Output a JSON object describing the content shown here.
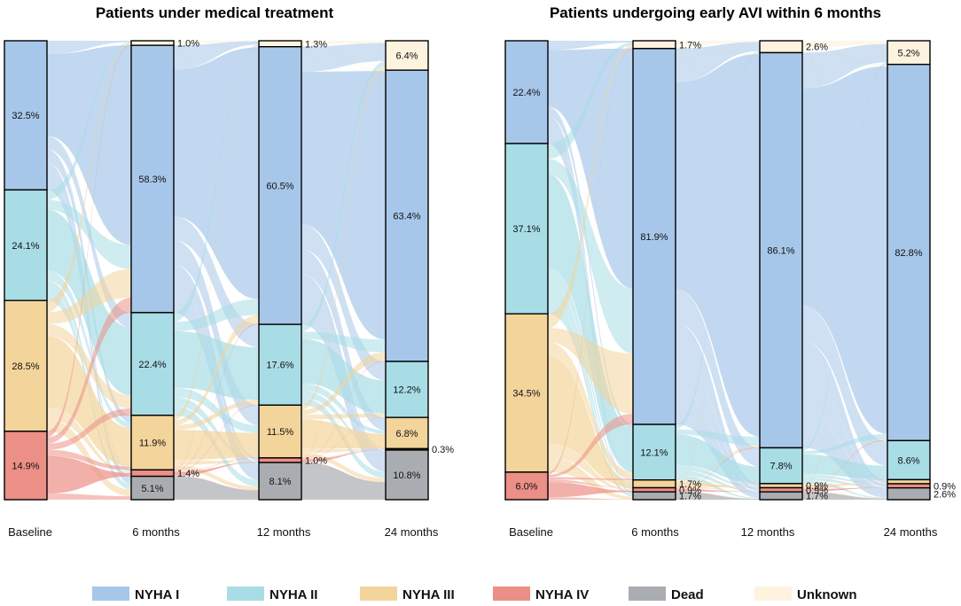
{
  "colors": {
    "NYHA I": "#a7c7ea",
    "NYHA II": "#a8dde6",
    "NYHA III": "#f3d49b",
    "NYHA IV": "#ec8f86",
    "Dead": "#a9adb1",
    "Unknown": "#fdf3de"
  },
  "legend": [
    "NYHA I",
    "NYHA II",
    "NYHA III",
    "NYHA IV",
    "Dead",
    "Unknown"
  ],
  "chart_data": [
    {
      "type": "sankey",
      "title": "Patients under medical treatment",
      "timepoints": [
        "Baseline",
        "6 months",
        "12 months",
        "24 months"
      ],
      "stack_order": [
        "Unknown",
        "NYHA I",
        "NYHA II",
        "NYHA III",
        "NYHA IV",
        "Dead"
      ],
      "columns": [
        {
          "NYHA I": 32.5,
          "NYHA II": 24.1,
          "NYHA III": 28.5,
          "NYHA IV": 14.9
        },
        {
          "Unknown": 1.0,
          "NYHA I": 58.3,
          "NYHA II": 22.4,
          "NYHA III": 11.9,
          "NYHA IV": 1.4,
          "Dead": 5.1
        },
        {
          "Unknown": 1.3,
          "NYHA I": 60.5,
          "NYHA II": 17.6,
          "NYHA III": 11.5,
          "NYHA IV": 1.0,
          "Dead": 8.1
        },
        {
          "Unknown": 6.4,
          "NYHA I": 63.4,
          "NYHA II": 12.2,
          "NYHA III": 6.8,
          "NYHA IV": 0.3,
          "Dead": 10.8
        }
      ],
      "labels": [
        {
          "NYHA I": "32.5%",
          "NYHA II": "24.1%",
          "NYHA III": "28.5%",
          "NYHA IV": "14.9%"
        },
        {
          "Unknown": "1.0%",
          "NYHA I": "58.3%",
          "NYHA II": "22.4%",
          "NYHA III": "11.9%",
          "NYHA IV": "1.4%",
          "Dead": "5.1%"
        },
        {
          "Unknown": "1.3%",
          "NYHA I": "60.5%",
          "NYHA II": "17.6%",
          "NYHA III": "11.5%",
          "NYHA IV": "1.0%",
          "Dead": "8.1%"
        },
        {
          "Unknown": "6.4%",
          "NYHA I": "63.4%",
          "NYHA II": "12.2%",
          "NYHA III": "6.8%",
          "NYHA IV": "0.3%",
          "Dead": "10.8%"
        }
      ]
    },
    {
      "type": "sankey",
      "title": "Patients undergoing early AVI within 6 months",
      "timepoints": [
        "Baseline",
        "6 months",
        "12 months",
        "24 months"
      ],
      "stack_order": [
        "Unknown",
        "NYHA I",
        "NYHA II",
        "NYHA III",
        "NYHA IV",
        "Dead"
      ],
      "columns": [
        {
          "NYHA I": 22.4,
          "NYHA II": 37.1,
          "NYHA III": 34.5,
          "NYHA IV": 6.0
        },
        {
          "Unknown": 1.7,
          "NYHA I": 81.9,
          "NYHA II": 12.1,
          "NYHA III": 1.7,
          "NYHA IV": 0.9,
          "Dead": 1.7
        },
        {
          "Unknown": 2.6,
          "NYHA I": 86.1,
          "NYHA II": 7.8,
          "NYHA III": 0.9,
          "NYHA IV": 0.9,
          "Dead": 1.7
        },
        {
          "Unknown": 5.2,
          "NYHA I": 82.8,
          "NYHA II": 8.6,
          "NYHA III": 0.9,
          "NYHA IV": 0.9,
          "Dead": 2.6
        }
      ],
      "labels": [
        {
          "NYHA I": "22.4%",
          "NYHA II": "37.1%",
          "NYHA III": "34.5%",
          "NYHA IV": "6.0%"
        },
        {
          "Unknown": "1.7%",
          "NYHA I": "81.9%",
          "NYHA II": "12.1%",
          "NYHA III": "1.7%",
          "NYHA IV": "0.9%",
          "Dead": "1.7%"
        },
        {
          "Unknown": "2.6%",
          "NYHA I": "86.1%",
          "NYHA II": "7.8%",
          "NYHA III": "0.9%",
          "NYHA IV": "0.9%",
          "Dead": "1.7%"
        },
        {
          "Unknown": "5.2%",
          "NYHA I": "82.8%",
          "NYHA II": "8.6%",
          "NYHA III": "",
          "NYHA IV": "0.9%",
          "Dead": "2.6%"
        }
      ]
    }
  ]
}
